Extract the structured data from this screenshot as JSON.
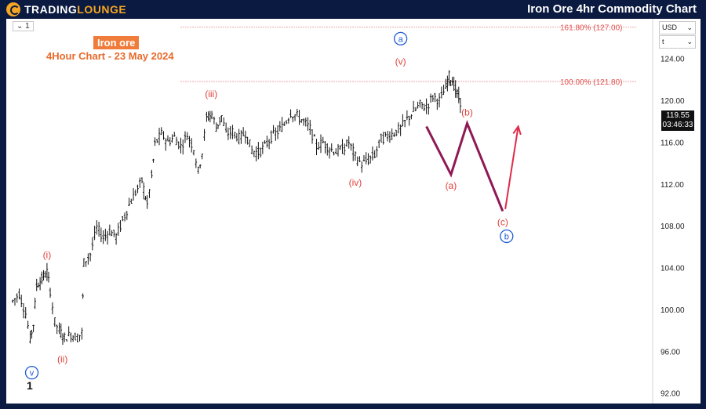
{
  "header": {
    "logo_main": "TRADING",
    "logo_accent": "LOUNGE",
    "title": "Iron Ore 4hr Commodity Chart"
  },
  "toolbar": {
    "interval_selector": "1"
  },
  "annotation": {
    "subject": "Iron ore",
    "subtitle": "4Hour Chart - 23 May 2024"
  },
  "axis": {
    "currency": "USD",
    "timezone": "t"
  },
  "last_price": {
    "value": "119.55",
    "countdown": "03:46:33"
  },
  "corner_label": "1",
  "colors": {
    "brand_bg": "#0b1a40",
    "brand_accent": "#f5a623",
    "wave_red": "#e0403a",
    "wave_blue": "#1e5bd6",
    "projection": "#8e1a55",
    "projection_final": "#e02b4a",
    "fib_line": "#e05050"
  },
  "chart_data": {
    "type": "candlestick",
    "title": "Iron Ore 4hr Commodity Chart",
    "y_axis": {
      "ticks": [
        124,
        120,
        116,
        112,
        108,
        104,
        100,
        96,
        92
      ],
      "tick_labels": [
        "124.00",
        "120.00",
        "116.00",
        "112.00",
        "108.00",
        "104.00",
        "100.00",
        "96.00",
        "92.00"
      ],
      "range": [
        91.0,
        127.8
      ]
    },
    "fib_levels": [
      {
        "label": "161.80% (127.00)",
        "price": 127.0
      },
      {
        "label": "100.00% (121.80)",
        "price": 121.8
      }
    ],
    "waves": [
      {
        "label": "v",
        "style": "circled-blue",
        "x": 0.0395,
        "price": 95.0,
        "anchor": "below"
      },
      {
        "label": "(i)",
        "style": "red",
        "x": 0.063,
        "price": 104.3,
        "anchor": "above"
      },
      {
        "label": "(ii)",
        "style": "red",
        "x": 0.087,
        "price": 96.3,
        "anchor": "below"
      },
      {
        "label": "(iii)",
        "style": "red",
        "x": 0.317,
        "price": 119.7,
        "anchor": "above"
      },
      {
        "label": "(iv)",
        "style": "red",
        "x": 0.54,
        "price": 113.2,
        "anchor": "below"
      },
      {
        "label": "(v)",
        "style": "red",
        "x": 0.61,
        "price": 122.8,
        "anchor": "above"
      },
      {
        "label": "a",
        "style": "circled-blue",
        "x": 0.61,
        "price": 125.0,
        "anchor": "above"
      }
    ],
    "projection": {
      "points": [
        {
          "label": "",
          "x": 0.65,
          "price": 117.5
        },
        {
          "label": "(a)",
          "x": 0.688,
          "price": 112.9
        },
        {
          "label": "(b)",
          "x": 0.713,
          "price": 117.8
        },
        {
          "label": "(c)",
          "x": 0.768,
          "price": 109.4
        }
      ],
      "final_leg": {
        "from_x": 0.772,
        "from_price": 109.6,
        "to_x": 0.792,
        "to_price": 117.5
      },
      "end_label": "b"
    },
    "price_path": [
      {
        "x": 0.01,
        "price": 100.8
      },
      {
        "x": 0.02,
        "price": 101.5
      },
      {
        "x": 0.03,
        "price": 99.6
      },
      {
        "x": 0.037,
        "price": 97.2
      },
      {
        "x": 0.042,
        "price": 98.6
      },
      {
        "x": 0.047,
        "price": 102.3
      },
      {
        "x": 0.055,
        "price": 102.9
      },
      {
        "x": 0.063,
        "price": 103.6
      },
      {
        "x": 0.068,
        "price": 101.8
      },
      {
        "x": 0.075,
        "price": 98.8
      },
      {
        "x": 0.082,
        "price": 98.0
      },
      {
        "x": 0.09,
        "price": 97.3
      },
      {
        "x": 0.1,
        "price": 97.6
      },
      {
        "x": 0.11,
        "price": 97.3
      },
      {
        "x": 0.117,
        "price": 97.8
      },
      {
        "x": 0.12,
        "price": 104.5
      },
      {
        "x": 0.13,
        "price": 105.3
      },
      {
        "x": 0.14,
        "price": 107.8
      },
      {
        "x": 0.15,
        "price": 106.9
      },
      {
        "x": 0.16,
        "price": 107.5
      },
      {
        "x": 0.17,
        "price": 107.0
      },
      {
        "x": 0.18,
        "price": 108.5
      },
      {
        "x": 0.19,
        "price": 110.0
      },
      {
        "x": 0.2,
        "price": 111.2
      },
      {
        "x": 0.21,
        "price": 112.3
      },
      {
        "x": 0.218,
        "price": 110.0
      },
      {
        "x": 0.225,
        "price": 112.7
      },
      {
        "x": 0.23,
        "price": 115.8
      },
      {
        "x": 0.24,
        "price": 116.8
      },
      {
        "x": 0.25,
        "price": 116.0
      },
      {
        "x": 0.26,
        "price": 116.5
      },
      {
        "x": 0.27,
        "price": 115.6
      },
      {
        "x": 0.28,
        "price": 116.7
      },
      {
        "x": 0.29,
        "price": 115.4
      },
      {
        "x": 0.297,
        "price": 113.2
      },
      {
        "x": 0.303,
        "price": 115.0
      },
      {
        "x": 0.31,
        "price": 118.3
      },
      {
        "x": 0.318,
        "price": 118.7
      },
      {
        "x": 0.325,
        "price": 117.4
      },
      {
        "x": 0.333,
        "price": 118.5
      },
      {
        "x": 0.34,
        "price": 116.8
      },
      {
        "x": 0.35,
        "price": 117.0
      },
      {
        "x": 0.36,
        "price": 116.4
      },
      {
        "x": 0.37,
        "price": 116.9
      },
      {
        "x": 0.38,
        "price": 115.2
      },
      {
        "x": 0.39,
        "price": 115.0
      },
      {
        "x": 0.4,
        "price": 115.6
      },
      {
        "x": 0.41,
        "price": 116.5
      },
      {
        "x": 0.42,
        "price": 117.0
      },
      {
        "x": 0.43,
        "price": 117.7
      },
      {
        "x": 0.44,
        "price": 118.8
      },
      {
        "x": 0.45,
        "price": 118.5
      },
      {
        "x": 0.46,
        "price": 118.0
      },
      {
        "x": 0.47,
        "price": 117.3
      },
      {
        "x": 0.48,
        "price": 115.6
      },
      {
        "x": 0.49,
        "price": 116.0
      },
      {
        "x": 0.5,
        "price": 115.4
      },
      {
        "x": 0.51,
        "price": 115.1
      },
      {
        "x": 0.52,
        "price": 115.3
      },
      {
        "x": 0.53,
        "price": 116.0
      },
      {
        "x": 0.54,
        "price": 114.6
      },
      {
        "x": 0.55,
        "price": 113.9
      },
      {
        "x": 0.56,
        "price": 114.3
      },
      {
        "x": 0.57,
        "price": 114.8
      },
      {
        "x": 0.58,
        "price": 116.3
      },
      {
        "x": 0.59,
        "price": 116.6
      },
      {
        "x": 0.6,
        "price": 116.9
      },
      {
        "x": 0.61,
        "price": 117.3
      },
      {
        "x": 0.62,
        "price": 118.2
      },
      {
        "x": 0.63,
        "price": 118.9
      },
      {
        "x": 0.64,
        "price": 119.6
      },
      {
        "x": 0.65,
        "price": 119.3
      },
      {
        "x": 0.66,
        "price": 120.4
      },
      {
        "x": 0.67,
        "price": 120.0
      },
      {
        "x": 0.68,
        "price": 121.2
      },
      {
        "x": 0.685,
        "price": 122.3
      },
      {
        "x": 0.69,
        "price": 121.9
      },
      {
        "x": 0.695,
        "price": 121.0
      },
      {
        "x": 0.7,
        "price": 120.2
      },
      {
        "x": 0.705,
        "price": 119.55
      }
    ]
  }
}
